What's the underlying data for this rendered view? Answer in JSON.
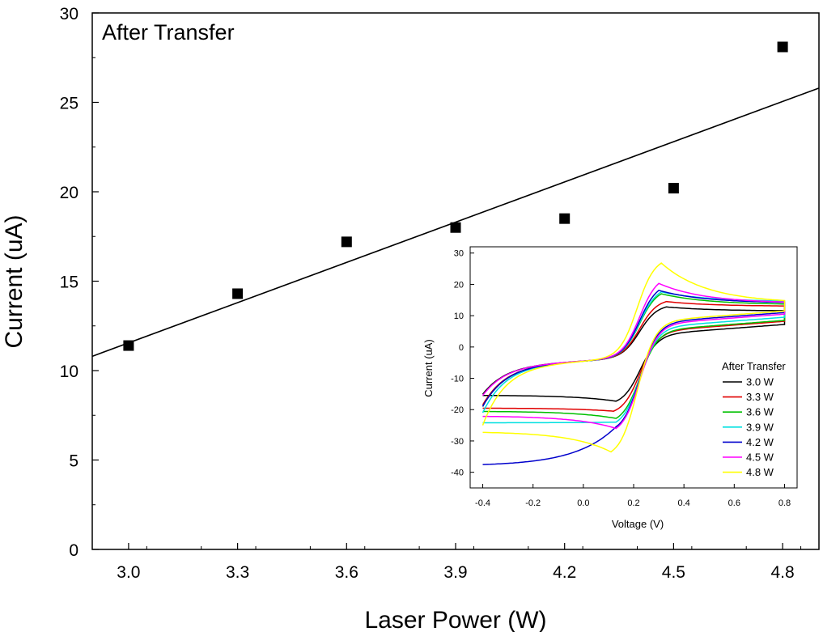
{
  "chart_data": [
    {
      "type": "scatter",
      "annotation": "After Transfer",
      "xlabel": "Laser Power (W)",
      "ylabel": "Current (uA)",
      "xlim": [
        2.9,
        4.9
      ],
      "ylim": [
        0,
        30
      ],
      "xticks": [
        3.0,
        3.3,
        3.6,
        3.9,
        4.2,
        4.5,
        4.8
      ],
      "xtick_labels": [
        "3.0",
        "3.3",
        "3.6",
        "3.9",
        "4.2",
        "4.5",
        "4.8"
      ],
      "yticks": [
        0,
        5,
        10,
        15,
        20,
        25,
        30
      ],
      "ytick_labels": [
        "0",
        "5",
        "10",
        "15",
        "20",
        "25",
        "30"
      ],
      "grid": false,
      "series": [
        {
          "x": [
            3.0,
            3.3,
            3.6,
            3.9,
            4.2,
            4.5,
            4.8
          ],
          "y": [
            11.4,
            14.3,
            17.2,
            18.0,
            18.5,
            20.2,
            28.1
          ],
          "marker": "square",
          "color": "#000000"
        }
      ],
      "fit_line": {
        "x": [
          2.9,
          4.9
        ],
        "y": [
          10.8,
          25.8
        ],
        "color": "#000000"
      }
    },
    {
      "type": "line",
      "inset": true,
      "xlabel": "Voltage (V)",
      "ylabel": "Current (uA)",
      "xlim": [
        -0.45,
        0.85
      ],
      "ylim": [
        -45,
        32
      ],
      "xticks": [
        -0.4,
        -0.2,
        0.0,
        0.2,
        0.4,
        0.6,
        0.8
      ],
      "xtick_labels": [
        "-0.4",
        "-0.2",
        "0.0",
        "0.2",
        "0.4",
        "0.6",
        "0.8"
      ],
      "yticks": [
        -40,
        -30,
        -20,
        -10,
        0,
        10,
        20,
        30
      ],
      "ytick_labels": [
        "-40",
        "-30",
        "-20",
        "-10",
        "0",
        "10",
        "20",
        "30"
      ],
      "legend": {
        "title": "After Transfer",
        "placement": "lower-right"
      },
      "series": [
        {
          "name": "3.0 W",
          "color": "#000000",
          "anodic_peak": [
            0.33,
            12.8
          ],
          "cathodic_peak": [
            0.13,
            -17.3
          ],
          "start": -15.4,
          "switch_high": 7.2,
          "switch_low": 11.5,
          "start_return": -15.1,
          "e_half": 0.225
        },
        {
          "name": "3.3 W",
          "color": "#e00000",
          "anodic_peak": [
            0.33,
            14.5
          ],
          "cathodic_peak": [
            0.12,
            -20.5
          ],
          "start": -19.5,
          "switch_high": 8.2,
          "switch_low": 13.0,
          "start_return": -18.5,
          "e_half": 0.225
        },
        {
          "name": "3.6 W",
          "color": "#00c000",
          "anodic_peak": [
            0.31,
            17.0
          ],
          "cathodic_peak": [
            0.13,
            -22.8
          ],
          "start": -20.5,
          "switch_high": 8.5,
          "switch_low": 13.5,
          "start_return": -19.0,
          "e_half": 0.225
        },
        {
          "name": "3.9 W",
          "color": "#00e0e0",
          "anodic_peak": [
            0.31,
            17.6
          ],
          "cathodic_peak": [
            0.13,
            -24.0
          ],
          "start": -24.2,
          "switch_high": 9.5,
          "switch_low": 14.5,
          "start_return": -21.0,
          "e_half": 0.225
        },
        {
          "name": "4.2 W",
          "color": "#0000cc",
          "anodic_peak": [
            0.3,
            18.1
          ],
          "cathodic_peak": [
            0.13,
            -25.5
          ],
          "start": -38.0,
          "switch_high": 11.0,
          "switch_low": 14.0,
          "start_return": -19.0,
          "e_half": 0.225
        },
        {
          "name": "4.5 W",
          "color": "#ff00ff",
          "anodic_peak": [
            0.3,
            20.3
          ],
          "cathodic_peak": [
            0.13,
            -26.0
          ],
          "start": -22.0,
          "switch_high": 10.5,
          "switch_low": 14.0,
          "start_return": -15.5,
          "e_half": 0.225
        },
        {
          "name": "4.8 W",
          "color": "#ffff00",
          "anodic_peak": [
            0.31,
            26.8
          ],
          "cathodic_peak": [
            0.11,
            -33.5
          ],
          "start": -27.0,
          "switch_high": 11.5,
          "switch_low": 14.0,
          "start_return": -25.0,
          "e_half": 0.215
        }
      ]
    }
  ]
}
